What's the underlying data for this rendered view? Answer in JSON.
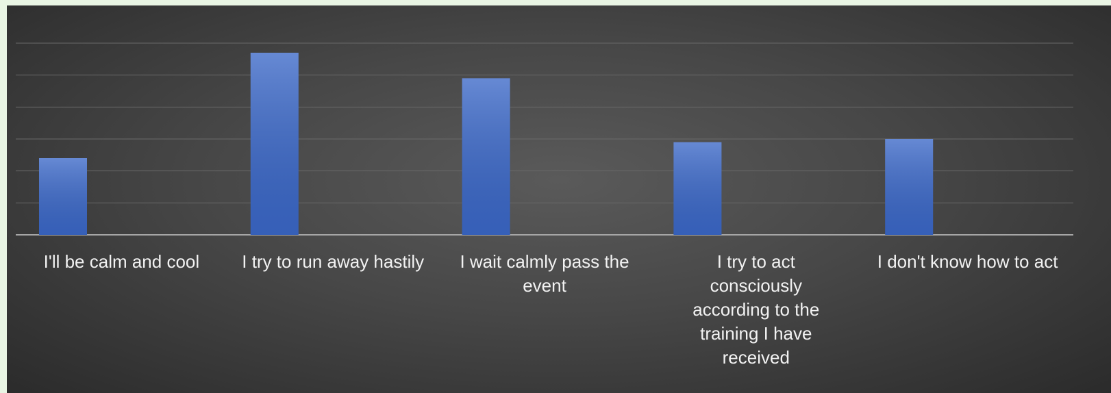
{
  "chart_data": {
    "type": "bar",
    "categories": [
      "I'll be calm and cool",
      "I try to run away hastily",
      "I wait calmly pass the event",
      "I try to act consciously according to the training I have received",
      "I don't know how to act"
    ],
    "values": [
      2.4,
      5.7,
      4.9,
      2.9,
      3.0
    ],
    "color": "#3b68c8",
    "ylim": [
      0,
      6
    ],
    "yticks": [
      0,
      1,
      2,
      3,
      4,
      5,
      6
    ],
    "grid": true
  }
}
